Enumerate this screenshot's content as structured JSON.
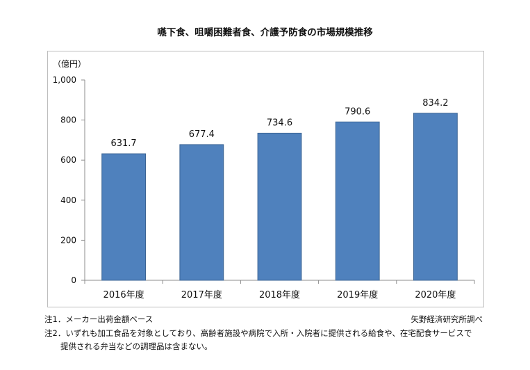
{
  "chart_data": {
    "type": "bar",
    "title": "嚥下食、咀嚼困難者食、介護予防食の市場規模推移",
    "unit_label": "（億円）",
    "categories": [
      "2016年度",
      "2017年度",
      "2018年度",
      "2019年度",
      "2020年度"
    ],
    "values": [
      631.7,
      677.4,
      734.6,
      790.6,
      834.2
    ],
    "value_labels": [
      "631.7",
      "677.4",
      "734.6",
      "790.6",
      "834.2"
    ],
    "ylim": [
      0,
      1000
    ],
    "yticks": [
      "0",
      "200",
      "400",
      "600",
      "800",
      "1,000"
    ],
    "ytick_values": [
      0,
      200,
      400,
      600,
      800,
      1000
    ],
    "bar_color": "#4f81bd",
    "grid": false,
    "legend": "none"
  },
  "notes": {
    "note1": "注1．メーカー出荷金額ベース",
    "note2_line1": "注2．いずれも加工食品を対象としており、高齢者施設や病院で入所・入院者に提供される給食や、在宅配食サービスで",
    "note2_line2": "　　提供される弁当などの調理品は含まない。",
    "source": "矢野経済研究所調べ"
  }
}
